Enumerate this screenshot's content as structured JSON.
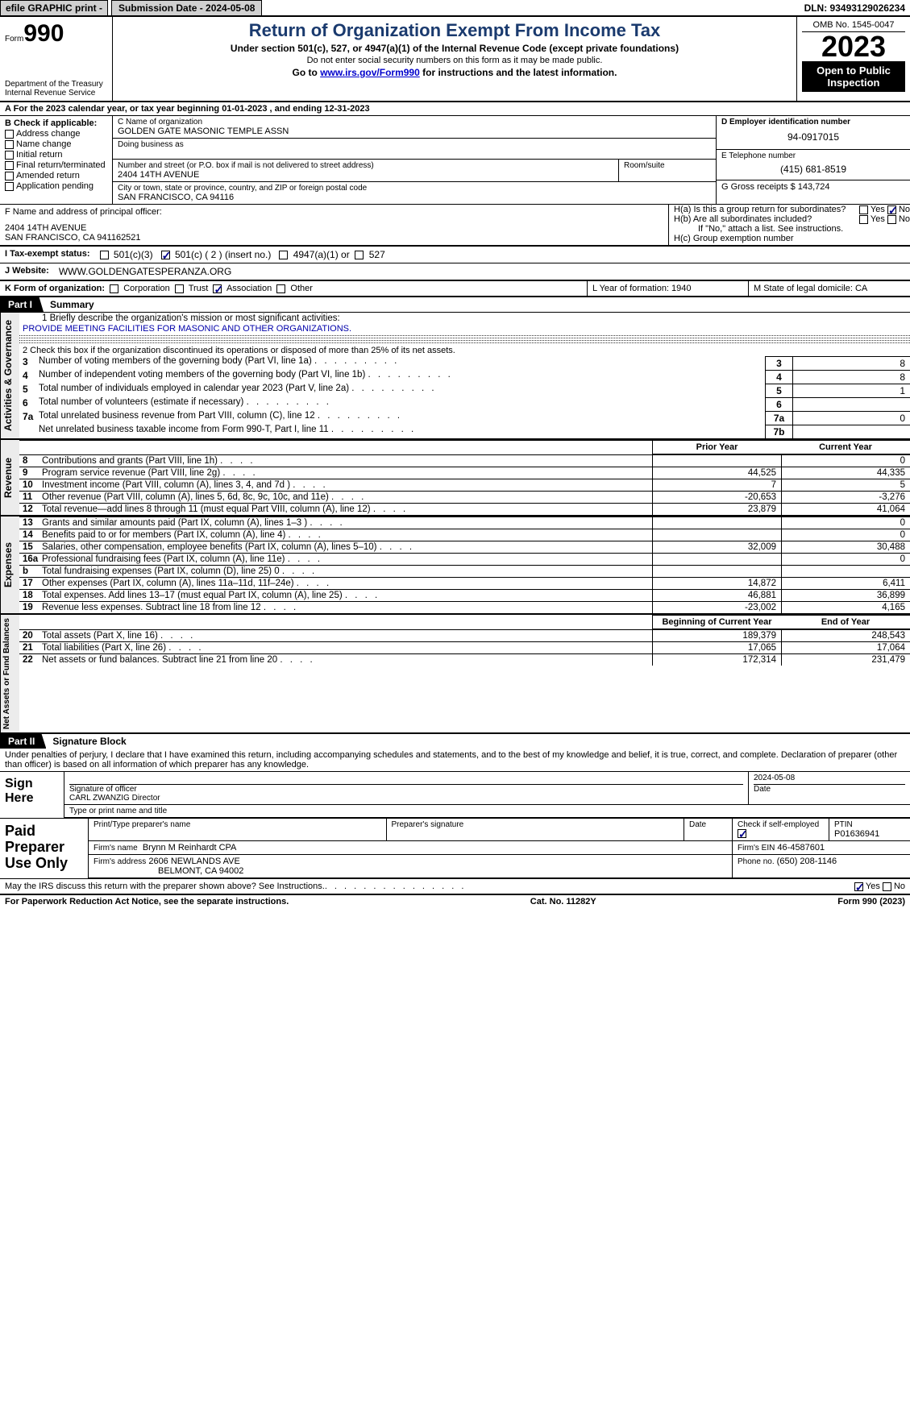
{
  "topbar": {
    "efile": "efile GRAPHIC print -",
    "subdate_label": "Submission Date - 2024-05-08",
    "dln": "DLN: 93493129026234"
  },
  "header": {
    "form_small": "Form",
    "form_num": "990",
    "dept": "Department of the Treasury",
    "irs": "Internal Revenue Service",
    "title": "Return of Organization Exempt From Income Tax",
    "sub": "Under section 501(c), 527, or 4947(a)(1) of the Internal Revenue Code (except private foundations)",
    "sub2": "Do not enter social security numbers on this form as it may be made public.",
    "go_pre": "Go to ",
    "go_link": "www.irs.gov/Form990",
    "go_post": " for instructions and the latest information.",
    "omb": "OMB No. 1545-0047",
    "year": "2023",
    "open": "Open to Public Inspection"
  },
  "sectionA": {
    "a_line": "A For the 2023 calendar year, or tax year beginning 01-01-2023    , and ending 12-31-2023",
    "b_label": "B Check if applicable:",
    "b_items": [
      "Address change",
      "Name change",
      "Initial return",
      "Final return/terminated",
      "Amended return",
      "Application pending"
    ],
    "c_label": "C Name of organization",
    "c_name": "GOLDEN GATE MASONIC TEMPLE ASSN",
    "dba_label": "Doing business as",
    "addr_label": "Number and street (or P.O. box if mail is not delivered to street address)",
    "addr": "2404 14TH AVENUE",
    "room_label": "Room/suite",
    "city_label": "City or town, state or province, country, and ZIP or foreign postal code",
    "city": "SAN FRANCISCO, CA   94116",
    "d_label": "D Employer identification number",
    "d_val": "94-0917015",
    "e_label": "E Telephone number",
    "e_val": "(415) 681-8519",
    "g_label": "G Gross receipts $ 143,724",
    "f_label": "F  Name and address of principal officer:",
    "f_addr1": "2404 14TH AVENUE",
    "f_addr2": "SAN FRANCISCO, CA  941162521",
    "ha_label": "H(a)  Is this a group return for subordinates?",
    "hb_label": "H(b)  Are all subordinates included?",
    "hb_note": "If \"No,\" attach a list. See instructions.",
    "hc_label": "H(c)  Group exemption number",
    "yes": "Yes",
    "no": "No"
  },
  "tax_status": {
    "label": "I   Tax-exempt status:",
    "opts": [
      "501(c)(3)",
      "501(c) ( 2 ) (insert no.)",
      "4947(a)(1) or",
      "527"
    ]
  },
  "website": {
    "label": "J   Website:",
    "url": "WWW.GOLDENGATESPERANZA.ORG"
  },
  "form_org": {
    "label": "K Form of organization:",
    "opts": [
      "Corporation",
      "Trust",
      "Association",
      "Other"
    ],
    "l": "L Year of formation: 1940",
    "m": "M State of legal domicile: CA"
  },
  "part1": {
    "tab": "Part I",
    "title": "Summary",
    "gov_label": "Activities & Governance",
    "rev_label": "Revenue",
    "exp_label": "Expenses",
    "net_label": "Net Assets or Fund Balances",
    "l1": "1   Briefly describe the organization's mission or most significant activities:",
    "mission": "PROVIDE MEETING FACILITIES FOR MASONIC AND OTHER ORGANIZATIONS.",
    "l2": "2   Check this box       if the organization discontinued its operations or disposed of more than 25% of its net assets.",
    "lines_gov": [
      {
        "n": "3",
        "t": "Number of voting members of the governing body (Part VI, line 1a)",
        "a": "3",
        "v": "8"
      },
      {
        "n": "4",
        "t": "Number of independent voting members of the governing body (Part VI, line 1b)",
        "a": "4",
        "v": "8"
      },
      {
        "n": "5",
        "t": "Total number of individuals employed in calendar year 2023 (Part V, line 2a)",
        "a": "5",
        "v": "1"
      },
      {
        "n": "6",
        "t": "Total number of volunteers (estimate if necessary)",
        "a": "6",
        "v": ""
      },
      {
        "n": "7a",
        "t": "Total unrelated business revenue from Part VIII, column (C), line 12",
        "a": "7a",
        "v": "0"
      },
      {
        "n": "",
        "t": "Net unrelated business taxable income from Form 990-T, Part I, line 11",
        "a": "7b",
        "v": ""
      }
    ],
    "col_prior": "Prior Year",
    "col_current": "Current Year",
    "col_begin": "Beginning of Current Year",
    "col_end": "End of Year",
    "revenue": [
      {
        "n": "8",
        "t": "Contributions and grants (Part VIII, line 1h)",
        "p": "",
        "c": "0"
      },
      {
        "n": "9",
        "t": "Program service revenue (Part VIII, line 2g)",
        "p": "44,525",
        "c": "44,335"
      },
      {
        "n": "10",
        "t": "Investment income (Part VIII, column (A), lines 3, 4, and 7d )",
        "p": "7",
        "c": "5"
      },
      {
        "n": "11",
        "t": "Other revenue (Part VIII, column (A), lines 5, 6d, 8c, 9c, 10c, and 11e)",
        "p": "-20,653",
        "c": "-3,276"
      },
      {
        "n": "12",
        "t": "Total revenue—add lines 8 through 11 (must equal Part VIII, column (A), line 12)",
        "p": "23,879",
        "c": "41,064"
      }
    ],
    "expenses": [
      {
        "n": "13",
        "t": "Grants and similar amounts paid (Part IX, column (A), lines 1–3 )",
        "p": "",
        "c": "0"
      },
      {
        "n": "14",
        "t": "Benefits paid to or for members (Part IX, column (A), line 4)",
        "p": "",
        "c": "0"
      },
      {
        "n": "15",
        "t": "Salaries, other compensation, employee benefits (Part IX, column (A), lines 5–10)",
        "p": "32,009",
        "c": "30,488"
      },
      {
        "n": "16a",
        "t": "Professional fundraising fees (Part IX, column (A), line 11e)",
        "p": "",
        "c": "0"
      },
      {
        "n": "b",
        "t": "Total fundraising expenses (Part IX, column (D), line 25) 0",
        "p": "shade",
        "c": "shade"
      },
      {
        "n": "17",
        "t": "Other expenses (Part IX, column (A), lines 11a–11d, 11f–24e)",
        "p": "14,872",
        "c": "6,411"
      },
      {
        "n": "18",
        "t": "Total expenses. Add lines 13–17 (must equal Part IX, column (A), line 25)",
        "p": "46,881",
        "c": "36,899"
      },
      {
        "n": "19",
        "t": "Revenue less expenses. Subtract line 18 from line 12",
        "p": "-23,002",
        "c": "4,165"
      }
    ],
    "netassets": [
      {
        "n": "20",
        "t": "Total assets (Part X, line 16)",
        "p": "189,379",
        "c": "248,543"
      },
      {
        "n": "21",
        "t": "Total liabilities (Part X, line 26)",
        "p": "17,065",
        "c": "17,064"
      },
      {
        "n": "22",
        "t": "Net assets or fund balances. Subtract line 21 from line 20",
        "p": "172,314",
        "c": "231,479"
      }
    ]
  },
  "part2": {
    "tab": "Part II",
    "title": "Signature Block",
    "decl": "Under penalties of perjury, I declare that I have examined this return, including accompanying schedules and statements, and to the best of my knowledge and belief, it is true, correct, and complete. Declaration of preparer (other than officer) is based on all information of which preparer has any knowledge.",
    "sign_here": "Sign Here",
    "sig_of_officer": "Signature of officer",
    "officer": "CARL ZWANZIG  Director",
    "type_name": "Type or print name and title",
    "date": "Date",
    "date_val": "2024-05-08",
    "paid": "Paid Preparer Use Only",
    "prep_name_lbl": "Print/Type preparer's name",
    "prep_sig_lbl": "Preparer's signature",
    "check_if": "Check         if self-employed",
    "ptin_lbl": "PTIN",
    "ptin": "P01636941",
    "firm_name_lbl": "Firm's name",
    "firm_name": "Brynn M Reinhardt CPA",
    "firm_ein_lbl": "Firm's EIN",
    "firm_ein": "46-4587601",
    "firm_addr_lbl": "Firm's address",
    "firm_addr": "2606 NEWLANDS AVE",
    "firm_city": "BELMONT, CA   94002",
    "phone_lbl": "Phone no.",
    "phone": "(650) 208-1146",
    "discuss": "May the IRS discuss this return with the preparer shown above? See Instructions."
  },
  "footer": {
    "left": "For Paperwork Reduction Act Notice, see the separate instructions.",
    "mid": "Cat. No. 11282Y",
    "right": "Form 990 (2023)"
  }
}
